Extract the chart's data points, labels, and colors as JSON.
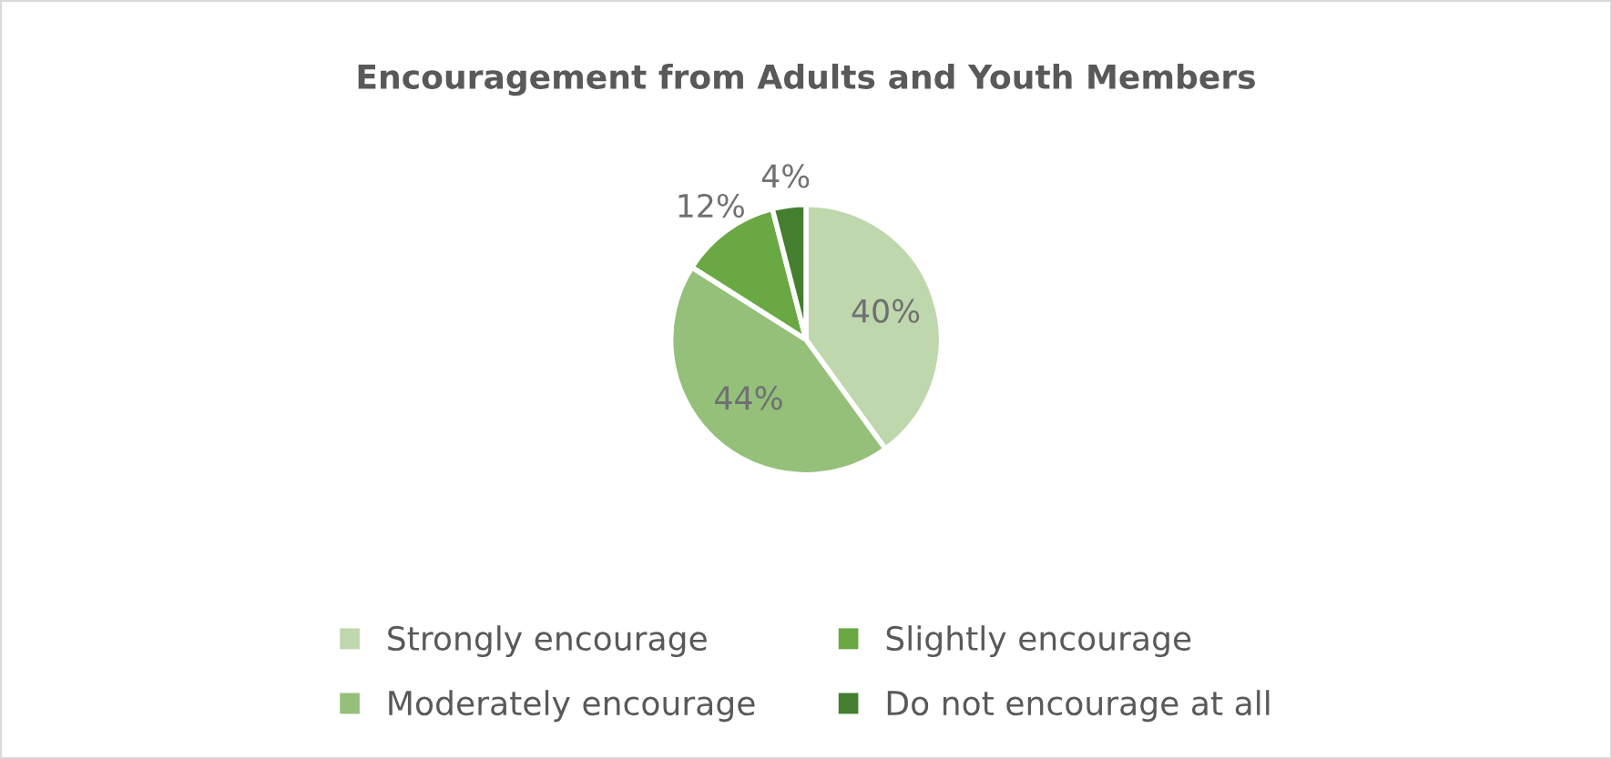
{
  "chart_data": {
    "type": "pie",
    "title": "Encouragement from Adults and Youth Members",
    "categories": [
      "Strongly encourage",
      "Moderately encourage",
      "Slightly encourage",
      "Do not encourage at all"
    ],
    "values": [
      40,
      44,
      12,
      4
    ],
    "value_labels": [
      "40%",
      "44%",
      "12%",
      "4%"
    ],
    "colors": [
      "#bfd7ad",
      "#94c07a",
      "#6aa843",
      "#437f2f"
    ],
    "legend": "bottom"
  }
}
